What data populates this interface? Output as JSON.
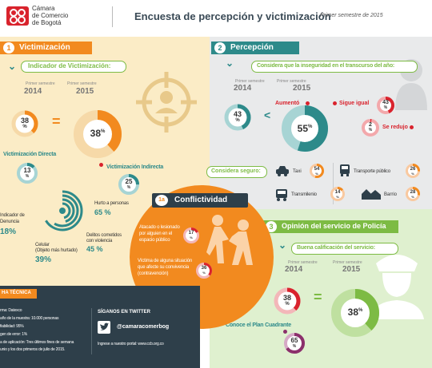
{
  "header": {
    "logo_text": [
      "Cámara",
      "de Comercio",
      "de Bogotá"
    ],
    "title": "Encuesta de percepción y victimización",
    "subtitle": "Primer semestre de 2015"
  },
  "victimizacion": {
    "num": "1",
    "title": "Victimización",
    "indicador_title": "Indicador de Victimización:",
    "col_2014_label": "Primer semestre",
    "col_2014_year": "2014",
    "col_2015_label": "Primer semestre",
    "col_2015_year": "2015",
    "pct_2014": "38",
    "pct_2015": "38",
    "equals": "=",
    "directa_label": "Victimización Directa",
    "directa_pct": "13",
    "indirecta_label": "Victimización Indirecta",
    "indirecta_pct": "25",
    "denuncia_label": [
      "Indicador de",
      "Denuncia"
    ],
    "denuncia_pct": "18%",
    "hurto_label": "Hurto a personas",
    "hurto_pct": "65 %",
    "celular_label": [
      "Celular",
      "(Objeto más hurtado)"
    ],
    "celular_pct": "39%",
    "delitos_label": [
      "Delitos cometidos",
      "con violencia"
    ],
    "delitos_pct": "45 %"
  },
  "percepcion": {
    "num": "2",
    "title": "Percepción",
    "question": "Considera que la inseguridad en el transcurso del año:",
    "col_2014_label": "Primer semestre",
    "col_2014_year": "2014",
    "col_2015_label": "Primer semestre",
    "col_2015_year": "2015",
    "pct_2014": "43",
    "pct_2015": "55",
    "lt": "<",
    "aumento": "Aumentó",
    "sigue_igual": "Sigue igual",
    "sigue_igual_pct": "43",
    "se_redujo": "Se redujo",
    "se_redujo_pct": "2",
    "considera_seguro": "Considera seguro:",
    "taxi_label": "Taxi",
    "taxi_pct": "54",
    "transporte_label": "Transporte público",
    "transporte_pct": "26",
    "transmilenio_label": "Transmilenio",
    "transmilenio_pct": "14",
    "barrio_label": "Barrio",
    "barrio_pct": "28"
  },
  "conflictividad": {
    "num": "1a",
    "title": "Conflictividad",
    "atacado_label": [
      "Atacado o lesionado",
      "por alguien en el",
      "espacio público"
    ],
    "atacado_pct": "17",
    "victima_label": [
      "Víctima de alguna situación",
      "que afecte su convivencia",
      "(contravención)"
    ],
    "victima_pct": "36"
  },
  "policia": {
    "num": "3",
    "title": "Opinión del servicio de Policía",
    "buena_title": "Buena calificación del servicio:",
    "col_2014_label": "Primer semestre",
    "col_2014_year": "2014",
    "col_2015_label": "Primer semestre",
    "col_2015_year": "2015",
    "pct_2014": "38",
    "pct_2015": "38",
    "equals": "=",
    "cuadrante_label": "Conoce el Plan Cuadrante",
    "cuadrante_pct": "65"
  },
  "ficha": {
    "title": "HA TÉCNICA",
    "lines": [
      "rma: Datexco",
      "año de la muestra: 10.000 personas",
      "fiabilidad: 95%",
      "gen de error: 1%",
      "a de aplicación: Tres últimos fines de semana",
      "unio y los dos primeros de julio de 2015."
    ],
    "twitter_title": "SÍGANOS EN TWITTER",
    "twitter_handle": "@camaracomerbog",
    "portal_text": "Ingrese a nuestro portal: www.ccb.org.co"
  },
  "colors": {
    "orange": "#f28a1f",
    "beige": "#fbecc6",
    "gray_bg": "#e9eaeb",
    "green_bg": "#dff0cf",
    "teal": "#2d8a8a",
    "purple": "#8b2f6b",
    "red": "#d9232d",
    "dark": "#2e3f4a",
    "lime": "#7dbb44"
  }
}
